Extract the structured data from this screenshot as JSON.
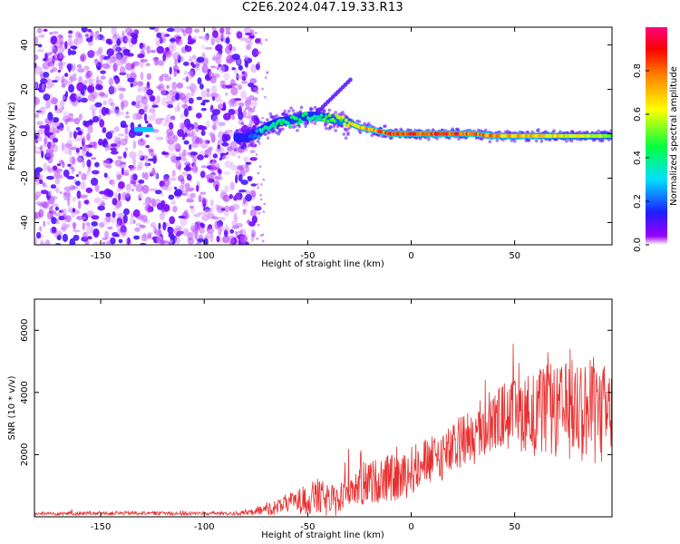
{
  "title": "C2E6.2024.047.19.33.R13",
  "chart_data": [
    {
      "type": "heatmap",
      "xlabel": "Height of straight line (km)",
      "ylabel": "Frequency (Hz)",
      "xlim": [
        -182,
        97
      ],
      "ylim": [
        -50,
        48
      ],
      "xticks": [
        "-150",
        "-100",
        "-50",
        "0",
        "50"
      ],
      "yticks": [
        "40",
        "20",
        "0",
        "-20",
        "-40"
      ],
      "colorbar": {
        "label": "Normalized spectral amplitude",
        "range": [
          0,
          1
        ],
        "ticks": [
          "0.0",
          "0.2",
          "0.4",
          "0.6",
          "0.8"
        ]
      },
      "signal_ridge": {
        "description": "",
        "x": [
          -132,
          -128,
          -124,
          -80,
          -75,
          -70,
          -65,
          -60,
          -55,
          -50,
          -45,
          -40,
          -35,
          -30,
          -25,
          -20,
          -15,
          -10,
          0,
          10,
          20,
          30,
          40,
          50,
          60,
          70,
          80,
          90,
          97
        ],
        "freq_hz": [
          2,
          2,
          2,
          -2,
          0,
          3,
          5,
          6,
          7,
          8,
          8,
          7,
          6,
          5,
          3,
          2,
          1,
          0,
          0,
          0,
          0,
          0,
          -1,
          -1,
          -1,
          -1,
          -1,
          -1,
          -1
        ],
        "amplitude": [
          0.25,
          0.25,
          0.25,
          0.15,
          0.3,
          0.4,
          0.45,
          0.45,
          0.5,
          0.45,
          0.45,
          0.55,
          0.6,
          0.7,
          0.75,
          0.85,
          0.9,
          0.95,
          0.95,
          0.95,
          0.95,
          0.9,
          0.85,
          0.8,
          0.8,
          0.75,
          0.7,
          0.65,
          0.6
        ]
      }
    },
    {
      "type": "line",
      "xlabel": "Height of straight line (km)",
      "ylabel": "SNR (10 * v/v)",
      "xlim": [
        -182,
        97
      ],
      "ylim": [
        0,
        7000
      ],
      "xticks": [
        "-150",
        "-100",
        "-50",
        "0",
        "50"
      ],
      "yticks": [
        "6000",
        "4000",
        "2000"
      ],
      "series": [
        {
          "color": "#e83030",
          "x": [
            -182,
            -170,
            -150,
            -130,
            -110,
            -90,
            -80,
            -75,
            -70,
            -65,
            -60,
            -55,
            -50,
            -45,
            -40,
            -35,
            -32,
            -30,
            -25,
            -20,
            -15,
            -10,
            -5,
            0,
            5,
            10,
            15,
            20,
            25,
            30,
            35,
            40,
            45,
            50,
            55,
            60,
            65,
            70,
            75,
            80,
            85,
            90,
            97
          ],
          "y": [
            100,
            110,
            110,
            120,
            110,
            110,
            120,
            150,
            250,
            300,
            450,
            500,
            550,
            650,
            500,
            450,
            1100,
            1000,
            1000,
            1100,
            1200,
            1250,
            1200,
            1500,
            1700,
            1800,
            2000,
            2100,
            2500,
            2500,
            2800,
            3000,
            3300,
            3200,
            3400,
            3300,
            3400,
            3300,
            3400,
            3500,
            3400,
            3300,
            3200
          ],
          "noise": [
            50,
            60,
            60,
            60,
            60,
            60,
            80,
            100,
            200,
            250,
            300,
            400,
            500,
            600,
            550,
            500,
            700,
            600,
            700,
            700,
            750,
            750,
            750,
            800,
            800,
            800,
            850,
            850,
            900,
            900,
            950,
            1000,
            1100,
            1200,
            1300,
            1400,
            1500,
            1500,
            1600,
            1700,
            1700,
            1700,
            1700
          ]
        }
      ]
    }
  ]
}
